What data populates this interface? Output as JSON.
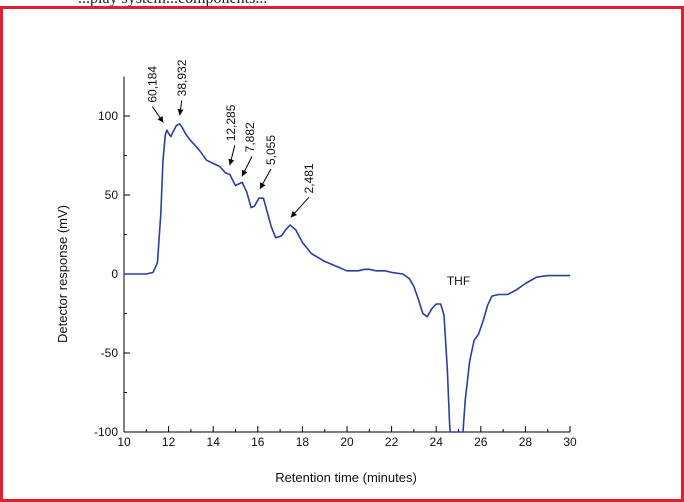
{
  "caption_fragment": "...play system...components...",
  "chart_data": {
    "type": "line",
    "title": "",
    "xlabel": "Retention time (minutes)",
    "ylabel": "Detector response (mV)",
    "xlim": [
      10,
      30
    ],
    "ylim": [
      -100,
      125
    ],
    "xticks": [
      10,
      12,
      14,
      16,
      18,
      20,
      22,
      24,
      26,
      28,
      30
    ],
    "yticks": [
      -100,
      -50,
      0,
      50,
      100
    ],
    "grid": false,
    "line_color": "#2b3f9e",
    "series": [
      {
        "x": [
          10.0,
          11.0,
          11.3,
          11.5,
          11.65,
          11.75,
          11.85,
          11.92,
          12.0,
          12.1,
          12.2,
          12.35,
          12.5,
          12.6,
          12.75,
          12.95,
          13.15,
          13.4,
          13.7,
          14.0,
          14.3,
          14.55,
          14.75,
          14.85,
          15.0,
          15.15,
          15.3,
          15.5,
          15.7,
          15.85,
          16.05,
          16.25,
          16.45,
          16.6,
          16.8,
          17.05,
          17.25,
          17.45,
          17.7,
          18.0,
          18.4,
          19.0,
          19.5,
          20.0,
          20.5,
          20.8,
          21.0,
          21.3,
          21.7,
          22.0,
          22.5,
          22.8,
          23.0,
          23.2,
          23.4,
          23.6,
          23.8,
          24.0,
          24.2,
          24.35,
          24.5,
          24.6,
          24.63,
          25.2,
          25.3,
          25.5,
          25.7,
          25.9,
          26.1,
          26.3,
          26.5,
          26.8,
          27.2,
          27.6,
          28.0,
          28.5,
          29.0,
          29.5,
          30.0
        ],
        "y": [
          0,
          0,
          1,
          7,
          38,
          72,
          88,
          91,
          89,
          87,
          90,
          94,
          95,
          93,
          89,
          85,
          82,
          78,
          72,
          70,
          68,
          64,
          63,
          60,
          56,
          57,
          58,
          52,
          42,
          43,
          48,
          48,
          38,
          30,
          23,
          24,
          28,
          31,
          28,
          20,
          13,
          8,
          5,
          2,
          2,
          3,
          3,
          2,
          2,
          1,
          0,
          -3,
          -8,
          -16,
          -25,
          -27,
          -22,
          -19,
          -19,
          -26,
          -60,
          -95,
          -100,
          -100,
          -80,
          -55,
          -42,
          -38,
          -30,
          -20,
          -14,
          -13,
          -13,
          -10,
          -6,
          -2,
          -1,
          -1,
          -1
        ]
      }
    ],
    "annotations": [
      {
        "text": "60,184",
        "x": 11.9,
        "y": 92
      },
      {
        "text": "38,932",
        "x": 12.5,
        "y": 96
      },
      {
        "text": "12,285",
        "x": 14.7,
        "y": 65
      },
      {
        "text": "7,882",
        "x": 15.2,
        "y": 58
      },
      {
        "text": "5,055",
        "x": 16.05,
        "y": 50
      },
      {
        "text": "2,481",
        "x": 17.3,
        "y": 32
      },
      {
        "text": "THF",
        "x": 25.0,
        "y": -10
      }
    ]
  }
}
